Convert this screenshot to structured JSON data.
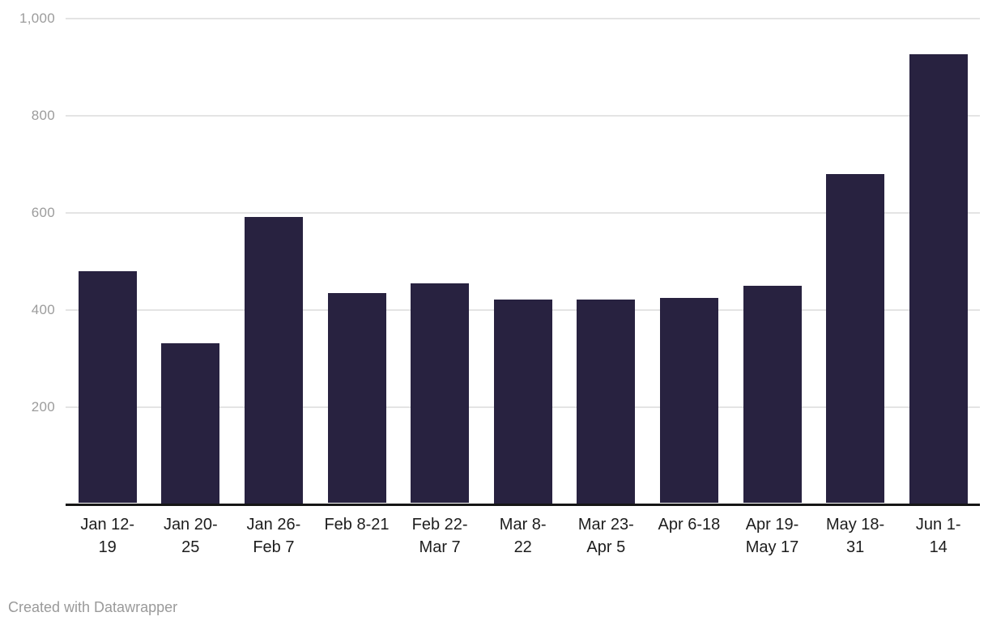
{
  "chart_data": {
    "type": "bar",
    "title": "",
    "xlabel": "",
    "ylabel": "",
    "categories": [
      "Jan 12-19",
      "Jan 20-25",
      "Jan 26-Feb 7",
      "Feb 8-21",
      "Feb 22-Mar 7",
      "Mar 8-22",
      "Mar 23-Apr 5",
      "Apr 6-18",
      "Apr 19-May 17",
      "May 18-31",
      "Jun 1-14"
    ],
    "category_lines": [
      [
        "Jan 12-",
        "19"
      ],
      [
        "Jan 20-",
        "25"
      ],
      [
        "Jan 26-",
        "Feb 7"
      ],
      [
        "Feb 8-21"
      ],
      [
        "Feb 22-",
        "Mar 7"
      ],
      [
        "Mar 8-",
        "22"
      ],
      [
        "Mar 23-",
        "Apr 5"
      ],
      [
        "Apr 6-18"
      ],
      [
        "Apr 19-",
        "May 17"
      ],
      [
        "May 18-",
        "31"
      ],
      [
        "Jun 1-",
        "14"
      ]
    ],
    "values": [
      477,
      330,
      590,
      433,
      452,
      420,
      420,
      423,
      447,
      677,
      925
    ],
    "ylim": [
      0,
      1000
    ],
    "yticks": [
      {
        "value": 200,
        "label": "200"
      },
      {
        "value": 400,
        "label": "400"
      },
      {
        "value": 600,
        "label": "600"
      },
      {
        "value": 800,
        "label": "800"
      },
      {
        "value": 1000,
        "label": "1,000"
      }
    ],
    "grid": true,
    "legend": false
  },
  "colors": {
    "bar": "#282240",
    "gridline": "#e4e4e4",
    "axis_line": "#161616",
    "y_tick_text": "#9c9c9c",
    "x_tick_text": "#1d1d1d",
    "footer_text": "#9a9a9a",
    "background": "#ffffff"
  },
  "footer": {
    "text": "Created with Datawrapper"
  }
}
